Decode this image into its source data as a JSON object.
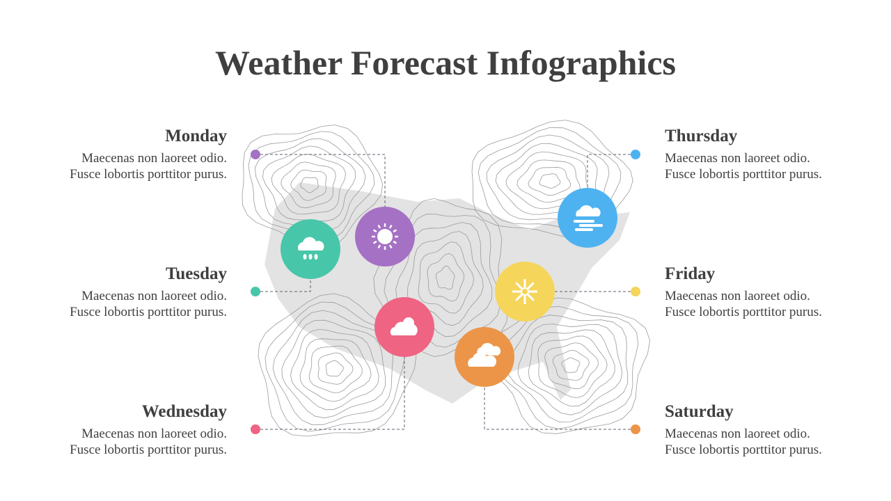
{
  "title": "Weather Forecast Infographics",
  "days": [
    {
      "label": "Monday",
      "lines": [
        "Maecenas non laoreet odio.",
        "Fusce lobortis porttitor purus."
      ]
    },
    {
      "label": "Tuesday",
      "lines": [
        "Maecenas non laoreet odio.",
        "Fusce lobortis porttitor purus."
      ]
    },
    {
      "label": "Wednesday",
      "lines": [
        "Maecenas non laoreet odio.",
        "Fusce lobortis porttitor purus."
      ]
    },
    {
      "label": "Thursday",
      "lines": [
        "Maecenas non laoreet odio.",
        "Fusce lobortis porttitor purus."
      ]
    },
    {
      "label": "Friday",
      "lines": [
        "Maecenas non laoreet odio.",
        "Fusce lobortis porttitor purus."
      ]
    },
    {
      "label": "Saturday",
      "lines": [
        "Maecenas non laoreet odio.",
        "Fusce lobortis porttitor purus."
      ]
    }
  ]
}
